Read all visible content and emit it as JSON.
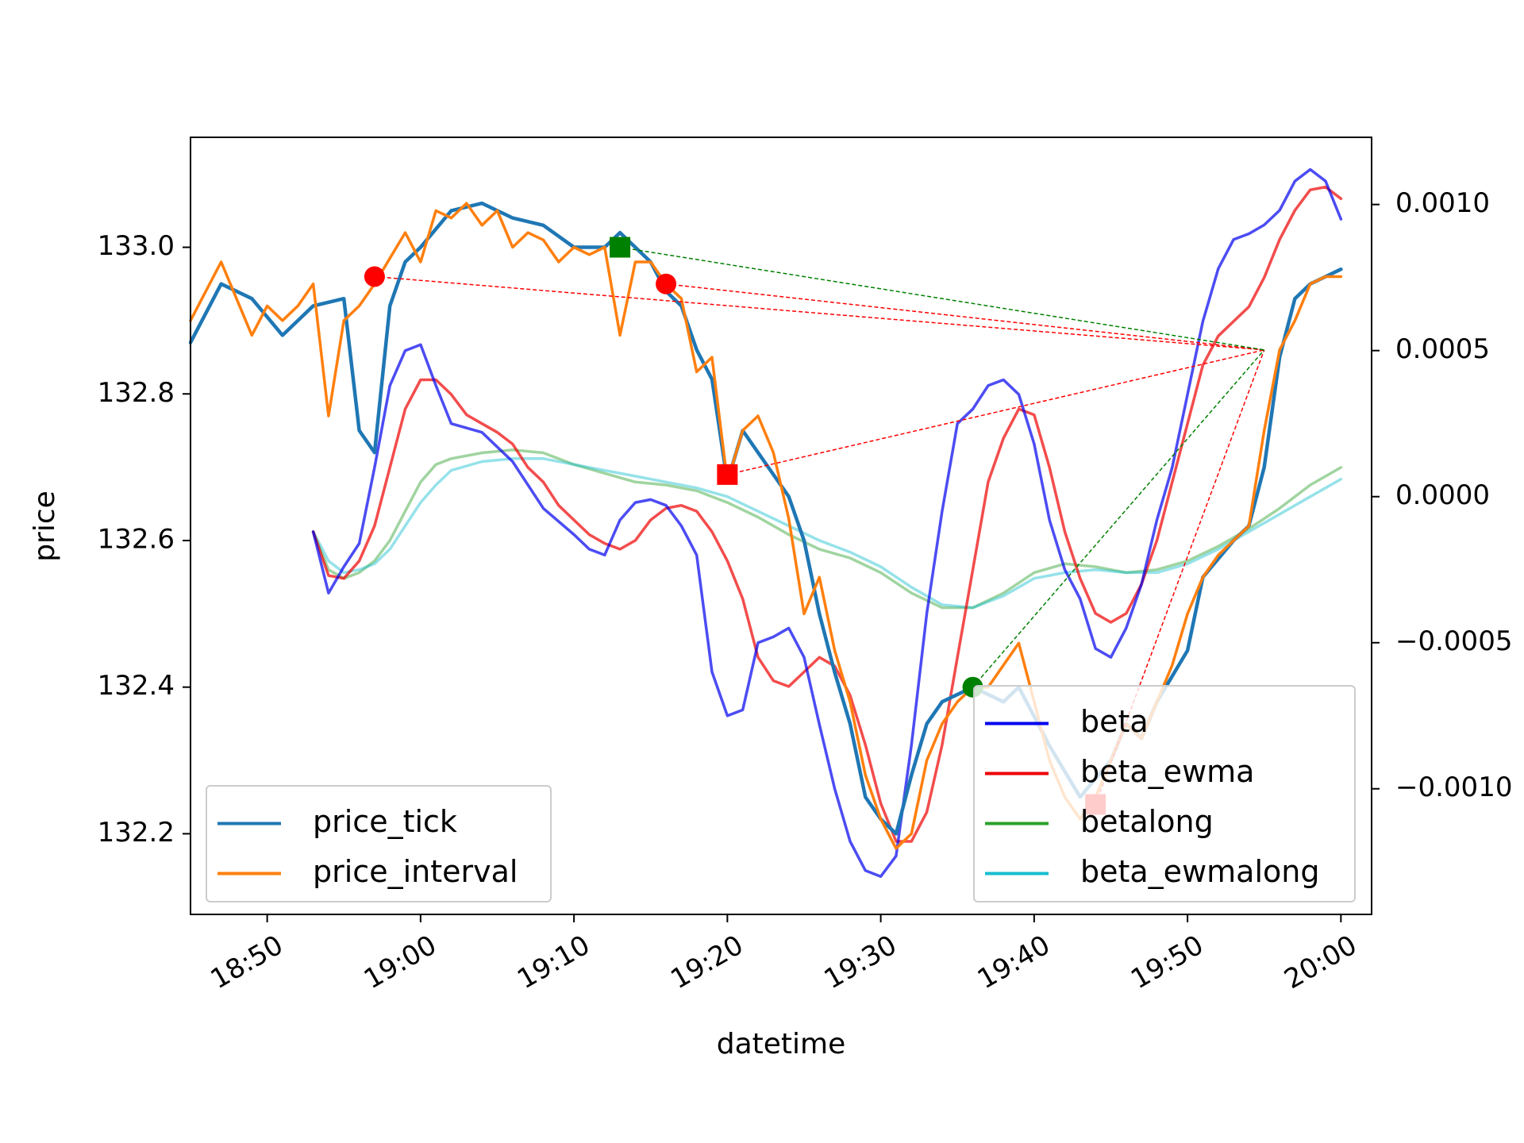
{
  "chart_data": {
    "type": "line",
    "xlabel": "datetime",
    "ylabel": "price",
    "xlim": [
      "18:45",
      "20:02"
    ],
    "ylim": [
      132.09,
      133.15
    ],
    "y2lim": [
      -0.00143,
      0.00123
    ],
    "grid": false,
    "x_ticks": [
      "18:50",
      "19:00",
      "19:10",
      "19:20",
      "19:30",
      "19:40",
      "19:50",
      "20:00"
    ],
    "y_ticks": [
      {
        "value": 133.0,
        "label": "133.0"
      },
      {
        "value": 132.8,
        "label": "132.8"
      },
      {
        "value": 132.6,
        "label": "132.6"
      },
      {
        "value": 132.4,
        "label": "132.4"
      },
      {
        "value": 132.2,
        "label": "132.2"
      }
    ],
    "y2_ticks": [
      {
        "value": 0.001,
        "label": "0.0010"
      },
      {
        "value": 0.0005,
        "label": "0.0005"
      },
      {
        "value": 0.0,
        "label": "0.0000"
      },
      {
        "value": -0.0005,
        "label": "−0.0005"
      },
      {
        "value": -0.001,
        "label": "−0.0010"
      }
    ],
    "series": [
      {
        "name": "price_tick",
        "axis": "left",
        "color": "#1f77b4",
        "x": [
          "18:45",
          "18:47",
          "18:49",
          "18:51",
          "18:53",
          "18:55",
          "18:56",
          "18:57",
          "18:58",
          "18:59",
          "19:00",
          "19:02",
          "19:04",
          "19:06",
          "19:08",
          "19:10",
          "19:12",
          "19:13",
          "19:15",
          "19:16",
          "19:17",
          "19:18",
          "19:19",
          "19:20",
          "19:21",
          "19:22",
          "19:24",
          "19:25",
          "19:26",
          "19:27",
          "19:28",
          "19:29",
          "19:30",
          "19:31",
          "19:32",
          "19:33",
          "19:34",
          "19:36",
          "19:38",
          "19:39",
          "19:41",
          "19:43",
          "19:45",
          "19:46",
          "19:47",
          "19:48",
          "19:50",
          "19:51",
          "19:53",
          "19:54",
          "19:55",
          "19:56",
          "19:57",
          "19:58",
          "19:59",
          "20:00"
        ],
        "y": [
          132.87,
          132.95,
          132.93,
          132.88,
          132.92,
          132.93,
          132.75,
          132.72,
          132.92,
          132.98,
          133.0,
          133.05,
          133.06,
          133.04,
          133.03,
          133.0,
          133.0,
          133.02,
          132.98,
          132.94,
          132.92,
          132.86,
          132.82,
          132.68,
          132.75,
          132.72,
          132.66,
          132.6,
          132.5,
          132.42,
          132.35,
          132.25,
          132.22,
          132.2,
          132.28,
          132.35,
          132.38,
          132.4,
          132.38,
          132.4,
          132.32,
          132.25,
          132.3,
          132.35,
          132.33,
          132.38,
          132.45,
          132.55,
          132.6,
          132.62,
          132.7,
          132.85,
          132.93,
          132.95,
          132.96,
          132.97
        ]
      },
      {
        "name": "price_interval",
        "axis": "left",
        "color": "#ff7f0e",
        "x": [
          "18:45",
          "18:47",
          "18:49",
          "18:50",
          "18:51",
          "18:52",
          "18:53",
          "18:54",
          "18:55",
          "18:56",
          "18:57",
          "18:59",
          "19:00",
          "19:01",
          "19:02",
          "19:03",
          "19:04",
          "19:05",
          "19:06",
          "19:07",
          "19:08",
          "19:09",
          "19:10",
          "19:11",
          "19:12",
          "19:13",
          "19:14",
          "19:15",
          "19:16",
          "19:17",
          "19:18",
          "19:19",
          "19:20",
          "19:21",
          "19:22",
          "19:23",
          "19:24",
          "19:25",
          "19:26",
          "19:27",
          "19:28",
          "19:29",
          "19:30",
          "19:31",
          "19:32",
          "19:33",
          "19:34",
          "19:35",
          "19:36",
          "19:37",
          "19:39",
          "19:40",
          "19:41",
          "19:42",
          "19:43",
          "19:44",
          "19:45",
          "19:46",
          "19:47",
          "19:48",
          "19:49",
          "19:50",
          "19:51",
          "19:52",
          "19:53",
          "19:54",
          "19:55",
          "19:56",
          "19:57",
          "19:58",
          "19:59",
          "20:00"
        ],
        "y": [
          132.9,
          132.98,
          132.88,
          132.92,
          132.9,
          132.92,
          132.95,
          132.77,
          132.9,
          132.92,
          132.95,
          133.02,
          132.98,
          133.05,
          133.04,
          133.06,
          133.03,
          133.05,
          133.0,
          133.02,
          133.01,
          132.98,
          133.0,
          132.99,
          133.0,
          132.88,
          132.98,
          132.98,
          132.95,
          132.93,
          132.83,
          132.85,
          132.68,
          132.75,
          132.77,
          132.72,
          132.63,
          132.5,
          132.55,
          132.45,
          132.38,
          132.28,
          132.22,
          132.18,
          132.2,
          132.3,
          132.35,
          132.38,
          132.4,
          132.4,
          132.46,
          132.38,
          132.3,
          132.25,
          132.22,
          132.25,
          132.3,
          132.35,
          132.33,
          132.38,
          132.43,
          132.5,
          132.55,
          132.58,
          132.6,
          132.62,
          132.75,
          132.86,
          132.9,
          132.95,
          132.96,
          132.96
        ]
      },
      {
        "name": "beta",
        "axis": "right",
        "color": "#0000ee",
        "x": [
          "18:53",
          "18:54",
          "18:55",
          "18:56",
          "18:57",
          "18:58",
          "18:59",
          "19:00",
          "19:01",
          "19:02",
          "19:04",
          "19:06",
          "19:08",
          "19:10",
          "19:11",
          "19:12",
          "19:13",
          "19:14",
          "19:15",
          "19:16",
          "19:17",
          "19:18",
          "19:19",
          "19:20",
          "19:21",
          "19:22",
          "19:23",
          "19:24",
          "19:25",
          "19:26",
          "19:27",
          "19:28",
          "19:29",
          "19:30",
          "19:31",
          "19:32",
          "19:33",
          "19:34",
          "19:35",
          "19:36",
          "19:37",
          "19:38",
          "19:39",
          "19:40",
          "19:41",
          "19:42",
          "19:43",
          "19:44",
          "19:45",
          "19:46",
          "19:47",
          "19:48",
          "19:49",
          "19:50",
          "19:51",
          "19:52",
          "19:53",
          "19:54",
          "19:55",
          "19:56",
          "19:57",
          "19:58",
          "19:59",
          "20:00"
        ],
        "y": [
          -0.00012,
          -0.00033,
          -0.00024,
          -0.00016,
          0.0001,
          0.00038,
          0.0005,
          0.00052,
          0.00038,
          0.00025,
          0.00022,
          0.00012,
          -4e-05,
          -0.00013,
          -0.00018,
          -0.0002,
          -8e-05,
          -2e-05,
          -1e-05,
          -3e-05,
          -0.0001,
          -0.0002,
          -0.0006,
          -0.00075,
          -0.00073,
          -0.0005,
          -0.00048,
          -0.00045,
          -0.00055,
          -0.00078,
          -0.001,
          -0.00118,
          -0.00128,
          -0.0013,
          -0.00123,
          -0.00085,
          -0.0004,
          -5e-05,
          0.00025,
          0.0003,
          0.00038,
          0.0004,
          0.00035,
          0.00018,
          -8e-05,
          -0.00025,
          -0.00035,
          -0.00052,
          -0.00055,
          -0.00045,
          -0.0003,
          -8e-05,
          0.0001,
          0.00035,
          0.0006,
          0.00078,
          0.00088,
          0.0009,
          0.00093,
          0.00098,
          0.00108,
          0.00112,
          0.00108,
          0.00095
        ]
      },
      {
        "name": "beta_ewma",
        "axis": "right",
        "color": "#ee0000",
        "x": [
          "18:53",
          "18:54",
          "18:55",
          "18:56",
          "18:57",
          "18:58",
          "18:59",
          "19:00",
          "19:01",
          "19:02",
          "19:03",
          "19:04",
          "19:05",
          "19:06",
          "19:07",
          "19:08",
          "19:09",
          "19:10",
          "19:11",
          "19:12",
          "19:13",
          "19:14",
          "19:15",
          "19:16",
          "19:17",
          "19:18",
          "19:19",
          "19:20",
          "19:21",
          "19:22",
          "19:23",
          "19:24",
          "19:25",
          "19:26",
          "19:27",
          "19:28",
          "19:29",
          "19:30",
          "19:31",
          "19:32",
          "19:33",
          "19:34",
          "19:35",
          "19:36",
          "19:37",
          "19:38",
          "19:39",
          "19:40",
          "19:41",
          "19:42",
          "19:43",
          "19:44",
          "19:45",
          "19:46",
          "19:47",
          "19:48",
          "19:49",
          "19:50",
          "19:51",
          "19:52",
          "19:53",
          "19:54",
          "19:55",
          "19:56",
          "19:57",
          "19:58",
          "19:59",
          "20:00"
        ],
        "y": [
          -0.00012,
          -0.00027,
          -0.00028,
          -0.00022,
          -0.0001,
          0.0001,
          0.0003,
          0.0004,
          0.0004,
          0.00035,
          0.00028,
          0.00025,
          0.00022,
          0.00018,
          0.0001,
          5e-05,
          -3e-05,
          -8e-05,
          -0.00013,
          -0.00016,
          -0.00018,
          -0.00015,
          -8e-05,
          -4e-05,
          -3e-05,
          -5e-05,
          -0.00012,
          -0.00022,
          -0.00035,
          -0.00055,
          -0.00063,
          -0.00065,
          -0.0006,
          -0.00055,
          -0.00058,
          -0.00068,
          -0.00085,
          -0.00105,
          -0.00118,
          -0.00118,
          -0.00108,
          -0.00085,
          -0.00055,
          -0.00025,
          5e-05,
          0.0002,
          0.0003,
          0.00028,
          0.0001,
          -0.00012,
          -0.00028,
          -0.0004,
          -0.00043,
          -0.0004,
          -0.0003,
          -0.00015,
          5e-05,
          0.00025,
          0.00045,
          0.00055,
          0.0006,
          0.00065,
          0.00075,
          0.00088,
          0.00098,
          0.00105,
          0.00106,
          0.00102
        ]
      },
      {
        "name": "betalong",
        "axis": "right",
        "color": "#2ca02c",
        "x": [
          "18:53",
          "18:54",
          "18:55",
          "18:56",
          "18:57",
          "18:58",
          "18:59",
          "19:00",
          "19:01",
          "19:02",
          "19:04",
          "19:06",
          "19:08",
          "19:10",
          "19:12",
          "19:14",
          "19:16",
          "19:18",
          "19:20",
          "19:22",
          "19:24",
          "19:26",
          "19:28",
          "19:30",
          "19:32",
          "19:34",
          "19:36",
          "19:38",
          "19:40",
          "19:42",
          "19:44",
          "19:46",
          "19:48",
          "19:50",
          "19:52",
          "19:54",
          "19:56",
          "19:58",
          "20:00"
        ],
        "y": [
          -0.00012,
          -0.00025,
          -0.00028,
          -0.00026,
          -0.00022,
          -0.00015,
          -5e-05,
          5e-05,
          0.00011,
          0.00013,
          0.00015,
          0.00016,
          0.00015,
          0.00011,
          8e-05,
          5e-05,
          4e-05,
          2e-05,
          -2e-05,
          -7e-05,
          -0.00013,
          -0.00018,
          -0.00021,
          -0.00026,
          -0.00033,
          -0.00038,
          -0.00038,
          -0.00033,
          -0.00026,
          -0.00023,
          -0.00024,
          -0.00026,
          -0.00025,
          -0.00022,
          -0.00017,
          -0.00011,
          -4e-05,
          4e-05,
          0.0001
        ]
      },
      {
        "name": "beta_ewmalong",
        "axis": "right",
        "color": "#17becf",
        "x": [
          "18:53",
          "18:54",
          "18:55",
          "18:56",
          "18:57",
          "18:58",
          "18:59",
          "19:00",
          "19:01",
          "19:02",
          "19:04",
          "19:06",
          "19:08",
          "19:10",
          "19:12",
          "19:14",
          "19:16",
          "19:18",
          "19:20",
          "19:22",
          "19:24",
          "19:26",
          "19:28",
          "19:30",
          "19:32",
          "19:34",
          "19:36",
          "19:38",
          "19:40",
          "19:42",
          "19:44",
          "19:46",
          "19:48",
          "19:50",
          "19:52",
          "19:54",
          "19:56",
          "19:58",
          "20:00"
        ],
        "y": [
          -0.00012,
          -0.00022,
          -0.00026,
          -0.00025,
          -0.00023,
          -0.00018,
          -0.0001,
          -2e-05,
          4e-05,
          9e-05,
          0.00012,
          0.00013,
          0.00013,
          0.00011,
          9e-05,
          7e-05,
          5e-05,
          3e-05,
          0.0,
          -5e-05,
          -0.0001,
          -0.00015,
          -0.00019,
          -0.00024,
          -0.00031,
          -0.00037,
          -0.00038,
          -0.00034,
          -0.00028,
          -0.00026,
          -0.00025,
          -0.00026,
          -0.00026,
          -0.00023,
          -0.00018,
          -0.00012,
          -6e-05,
          0.0,
          6e-05
        ]
      }
    ],
    "markers": [
      {
        "x": "18:57",
        "y": 132.96,
        "shape": "circle",
        "color": "#ff0000"
      },
      {
        "x": "19:16",
        "y": 132.95,
        "shape": "circle",
        "color": "#ff0000"
      },
      {
        "x": "19:13",
        "y": 133.0,
        "shape": "square",
        "color": "#008000"
      },
      {
        "x": "19:20",
        "y": 132.69,
        "shape": "square",
        "color": "#ff0000"
      },
      {
        "x": "19:36",
        "y": 132.4,
        "shape": "circle",
        "color": "#008000"
      },
      {
        "x": "19:44",
        "y": 132.24,
        "shape": "square",
        "color": "#ff0000"
      }
    ],
    "connectors": [
      {
        "x1": "18:57",
        "y1": 132.96,
        "x2": "19:55",
        "y2": 132.86,
        "color": "#ff0000"
      },
      {
        "x1": "19:16",
        "y1": 132.95,
        "x2": "19:55",
        "y2": 132.86,
        "color": "#ff0000"
      },
      {
        "x1": "19:20",
        "y1": 132.69,
        "x2": "19:55",
        "y2": 132.86,
        "color": "#ff0000"
      },
      {
        "x1": "19:44",
        "y1": 132.24,
        "x2": "19:55",
        "y2": 132.86,
        "color": "#ff0000"
      },
      {
        "x1": "19:13",
        "y1": 133.0,
        "x2": "19:55",
        "y2": 132.86,
        "color": "#008000"
      },
      {
        "x1": "19:36",
        "y1": 132.4,
        "x2": "19:55",
        "y2": 132.86,
        "color": "#008000"
      }
    ],
    "legends": [
      {
        "location": "lower-left",
        "entries": [
          {
            "label": "price_tick",
            "color": "#1f77b4"
          },
          {
            "label": "price_interval",
            "color": "#ff7f0e"
          }
        ]
      },
      {
        "location": "lower-right",
        "entries": [
          {
            "label": "beta",
            "color": "#0000ee"
          },
          {
            "label": "beta_ewma",
            "color": "#ee0000"
          },
          {
            "label": "betalong",
            "color": "#2ca02c"
          },
          {
            "label": "beta_ewmalong",
            "color": "#17becf"
          }
        ]
      }
    ]
  }
}
